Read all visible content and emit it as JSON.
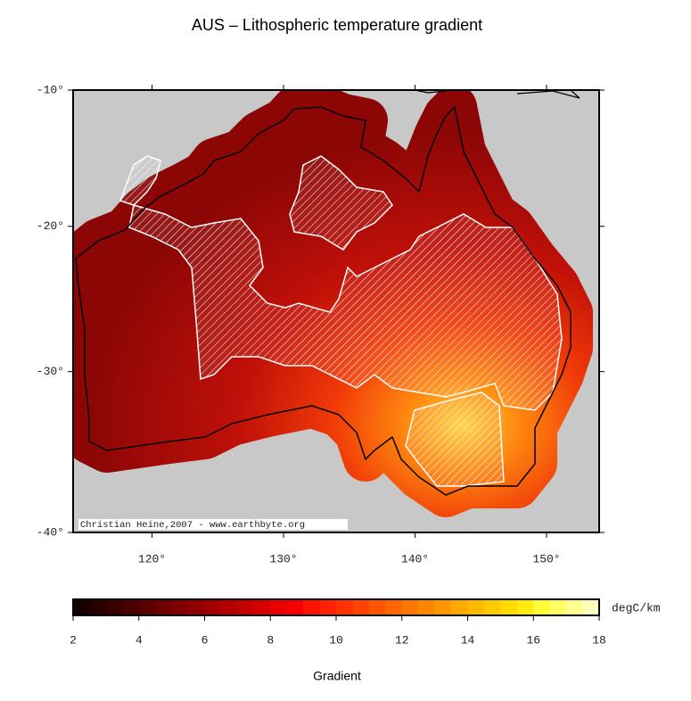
{
  "map": {
    "title": "AUS – Lithospheric temperature gradient",
    "credit": "Christian Heine,2007 - www.earthbyte.org",
    "lonlim": [
      114,
      154
    ],
    "latlim": [
      -10,
      -40
    ],
    "lonticks": [
      {
        "value": 120,
        "label": "120°"
      },
      {
        "value": 130,
        "label": "130°"
      },
      {
        "value": 140,
        "label": "140°"
      },
      {
        "value": 150,
        "label": "150°"
      }
    ],
    "latticks": [
      {
        "value": -10,
        "label": "-10°"
      },
      {
        "value": -20,
        "label": "-20°"
      },
      {
        "value": -30,
        "label": "-30°"
      },
      {
        "value": -40,
        "label": "-40°"
      }
    ]
  },
  "colorbar": {
    "range": [
      2,
      18
    ],
    "ticks": [
      2,
      4,
      6,
      8,
      10,
      12,
      14,
      16,
      18
    ],
    "unit": "degC/km",
    "label": "Gradient"
  }
}
